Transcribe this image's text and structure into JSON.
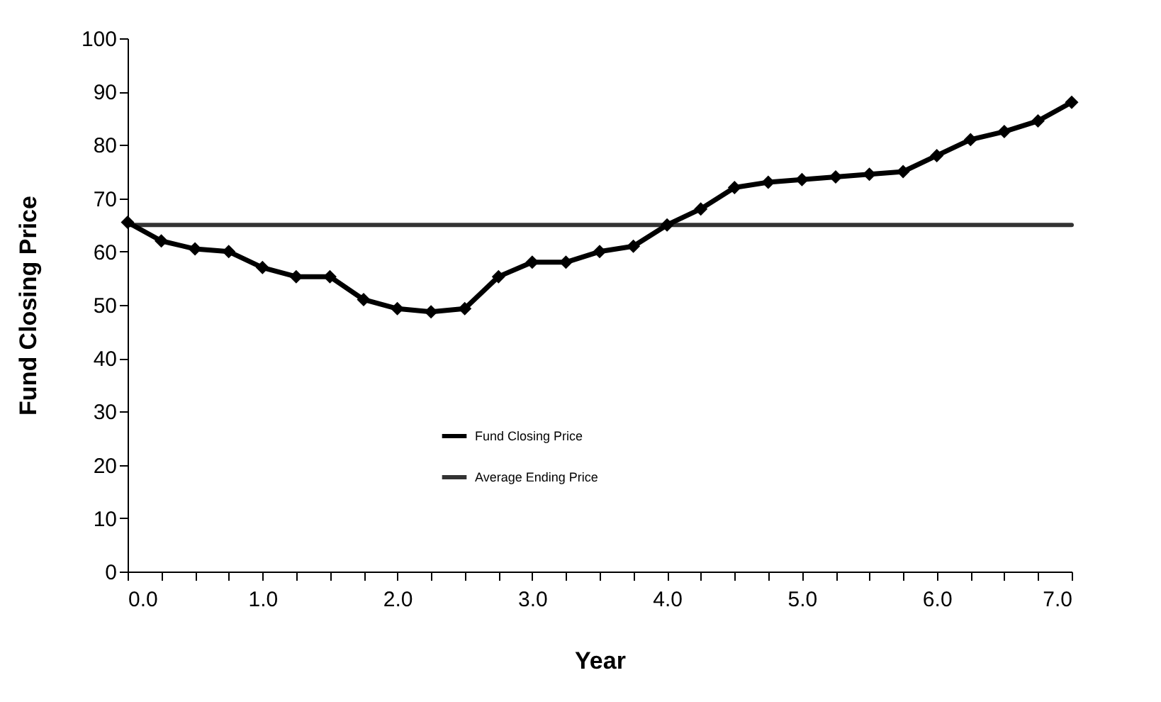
{
  "chart_data": {
    "type": "line",
    "xlabel": "Year",
    "ylabel": "Fund Closing Price",
    "x": [
      0,
      0.25,
      0.5,
      0.75,
      1,
      1.25,
      1.5,
      1.75,
      2,
      2.25,
      2.5,
      2.75,
      3,
      3.25,
      3.5,
      3.75,
      4,
      4.25,
      4.5,
      4.75,
      5,
      5.25,
      5.5,
      5.75,
      6,
      6.25,
      6.5,
      6.75,
      7
    ],
    "series": [
      {
        "name": "Fund Closing Price",
        "color": "#000000",
        "values": [
          65.5,
          62,
          60.5,
          60,
          57,
          55.3,
          55.3,
          51,
          49.3,
          48.7,
          49.3,
          55.3,
          58,
          58,
          60,
          61,
          65,
          68,
          72,
          73,
          73.5,
          74,
          74.5,
          75,
          78,
          81,
          82.5,
          84.5,
          88
        ]
      },
      {
        "name": "Average Ending Price",
        "color": "#333333",
        "type": "line",
        "marker": "none",
        "x": [
          0,
          7
        ],
        "values": [
          65,
          65
        ]
      }
    ],
    "xlim": [
      0,
      7
    ],
    "xticks": [
      {
        "value": 0,
        "label": "0.0"
      },
      {
        "value": 0.25,
        "label": null
      },
      {
        "value": 0.5,
        "label": null
      },
      {
        "value": 0.75,
        "label": null
      },
      {
        "value": 1,
        "label": "1.0"
      },
      {
        "value": 1.25,
        "label": null
      },
      {
        "value": 1.5,
        "label": null
      },
      {
        "value": 1.75,
        "label": null
      },
      {
        "value": 2,
        "label": "2.0"
      },
      {
        "value": 2.25,
        "label": null
      },
      {
        "value": 2.5,
        "label": null
      },
      {
        "value": 2.75,
        "label": null
      },
      {
        "value": 3,
        "label": "3.0"
      },
      {
        "value": 3.25,
        "label": null
      },
      {
        "value": 3.5,
        "label": null
      },
      {
        "value": 3.75,
        "label": null
      },
      {
        "value": 4,
        "label": "4.0"
      },
      {
        "value": 4.25,
        "label": null
      },
      {
        "value": 4.5,
        "label": null
      },
      {
        "value": 4.75,
        "label": null
      },
      {
        "value": 5,
        "label": "5.0"
      },
      {
        "value": 5.25,
        "label": null
      },
      {
        "value": 5.5,
        "label": null
      },
      {
        "value": 5.75,
        "label": null
      },
      {
        "value": 6,
        "label": "6.0"
      },
      {
        "value": 6.25,
        "label": null
      },
      {
        "value": 6.5,
        "label": null
      },
      {
        "value": 6.75,
        "label": null
      },
      {
        "value": 7,
        "label": "7.0"
      }
    ],
    "ylim": [
      0,
      100
    ],
    "yticks": [
      0,
      10,
      20,
      30,
      40,
      50,
      60,
      70,
      80,
      90,
      100
    ],
    "grid": false,
    "legend": "bottom",
    "marker": "diamond",
    "line_style": "solid"
  }
}
